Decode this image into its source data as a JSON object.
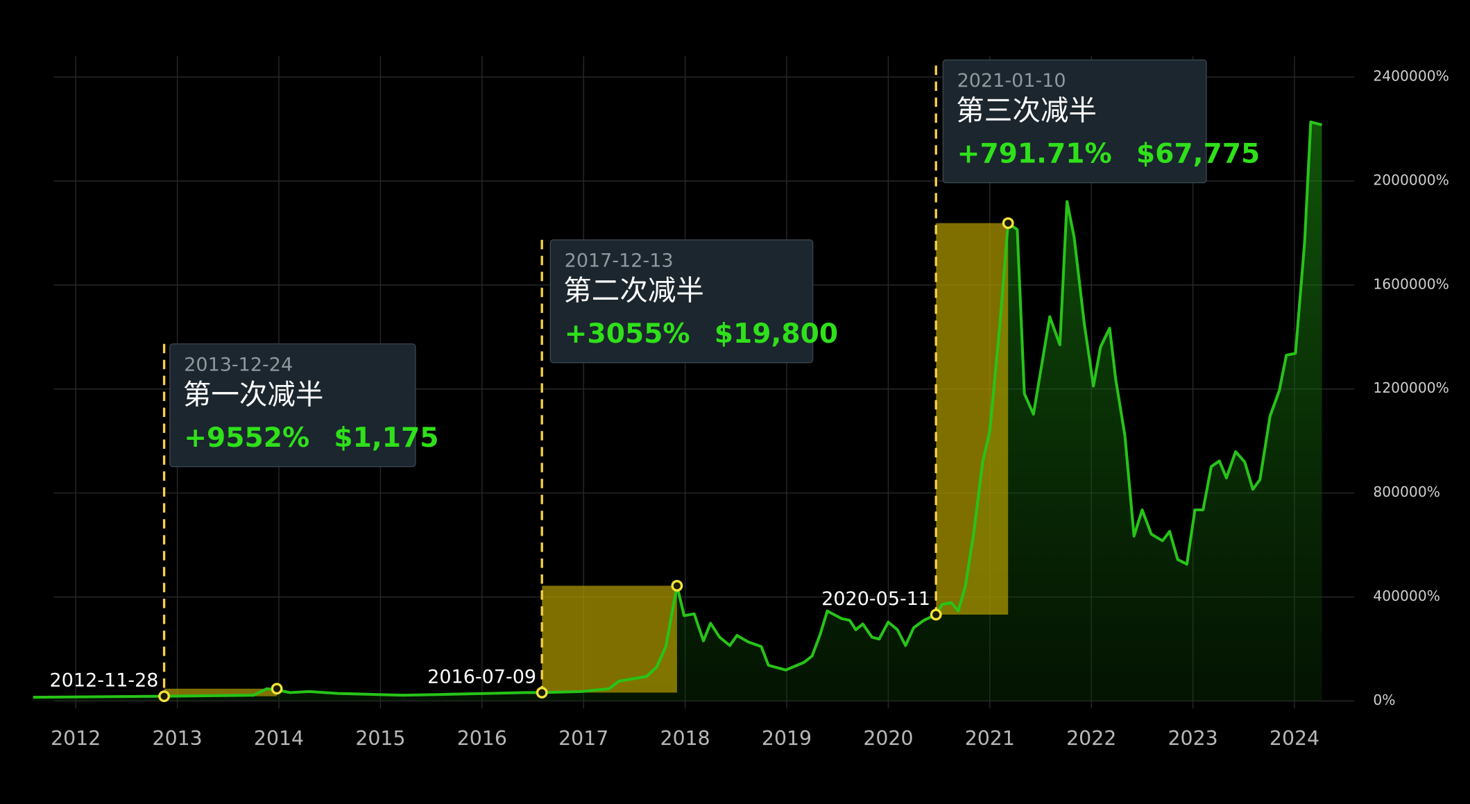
{
  "chart_data": {
    "type": "line",
    "color": "#27c418",
    "grid": true,
    "xlim": [
      2011.58,
      2024.59
    ],
    "xticks": [
      2012,
      2013,
      2014,
      2015,
      2016,
      2017,
      2018,
      2019,
      2020,
      2021,
      2022,
      2023,
      2024
    ],
    "ylim": [
      0,
      2480000
    ],
    "yticks": [
      {
        "value": 0,
        "label": "0%"
      },
      {
        "value": 400000,
        "label": "400000%"
      },
      {
        "value": 800000,
        "label": "800000%"
      },
      {
        "value": 1200000,
        "label": "1200000%"
      },
      {
        "value": 1600000,
        "label": "1600000%"
      },
      {
        "value": 2000000,
        "label": "2000000%"
      },
      {
        "value": 2400000,
        "label": "2400000%"
      }
    ],
    "x": [
      2011.58,
      2012.87,
      2013.75,
      2013.88,
      2013.97,
      2014.11,
      2014.3,
      2014.58,
      2014.95,
      2015.22,
      2015.59,
      2016.05,
      2016.42,
      2016.59,
      2016.98,
      2017.25,
      2017.35,
      2017.62,
      2017.72,
      2017.81,
      2017.92,
      2017.99,
      2018.09,
      2018.18,
      2018.25,
      2018.34,
      2018.44,
      2018.51,
      2018.62,
      2018.75,
      2018.82,
      2018.99,
      2019.17,
      2019.25,
      2019.33,
      2019.4,
      2019.54,
      2019.62,
      2019.68,
      2019.75,
      2019.84,
      2019.91,
      2020.0,
      2020.09,
      2020.17,
      2020.25,
      2020.35,
      2020.47,
      2020.53,
      2020.62,
      2020.69,
      2020.76,
      2020.84,
      2020.93,
      2021.0,
      2021.1,
      2021.18,
      2021.27,
      2021.34,
      2021.43,
      2021.59,
      2021.69,
      2021.76,
      2021.83,
      2021.93,
      2022.02,
      2022.09,
      2022.18,
      2022.24,
      2022.33,
      2022.42,
      2022.5,
      2022.59,
      2022.7,
      2022.77,
      2022.85,
      2022.94,
      2023.02,
      2023.1,
      2023.18,
      2023.26,
      2023.33,
      2023.42,
      2023.51,
      2023.59,
      2023.66,
      2023.76,
      2023.85,
      2023.92,
      2024.01,
      2024.1,
      2024.16,
      2024.27
    ],
    "values": [
      14000,
      18000,
      22000,
      47000,
      43000,
      32000,
      36000,
      29000,
      25000,
      22000,
      25000,
      29000,
      32000,
      32000,
      36000,
      47000,
      76000,
      94000,
      130000,
      209000,
      443000,
      328000,
      335000,
      231000,
      299000,
      245000,
      213000,
      252000,
      227000,
      209000,
      137000,
      119000,
      148000,
      173000,
      256000,
      346000,
      317000,
      310000,
      274000,
      296000,
      245000,
      238000,
      303000,
      274000,
      213000,
      281000,
      310000,
      332000,
      371000,
      378000,
      346000,
      443000,
      642000,
      919000,
      1038000,
      1452000,
      1838000,
      1813000,
      1182000,
      1103000,
      1478000,
      1370000,
      1921000,
      1784000,
      1452000,
      1211000,
      1362000,
      1434000,
      1236000,
      1020000,
      634000,
      735000,
      642000,
      616000,
      652000,
      544000,
      526000,
      735000,
      735000,
      901000,
      923000,
      858000,
      959000,
      919000,
      814000,
      851000,
      1096000,
      1193000,
      1330000,
      1337000,
      1766000,
      2227000,
      2216000
    ],
    "annotations": [
      {
        "halving_date": "2012-11-28",
        "halving_x": 2012.87,
        "halving_value": 18000,
        "peak_date": "2013-12-24",
        "peak_x": 2013.98,
        "peak_value": 47000,
        "title": "第一次减半",
        "change": "+9552%",
        "price": "$1,175"
      },
      {
        "halving_date": "2016-07-09",
        "halving_x": 2016.59,
        "halving_value": 32000,
        "peak_date": "2017-12-13",
        "peak_x": 2017.92,
        "peak_value": 443000,
        "title": "第二次减半",
        "change": "+3055%",
        "price": "$19,800"
      },
      {
        "halving_date": "2020-05-11",
        "halving_x": 2020.47,
        "halving_value": 332000,
        "peak_date": "2021-01-10",
        "peak_x": 2021.18,
        "peak_value": 1838000,
        "title": "第三次减半",
        "change": "+791.71%",
        "price": "$67,775"
      }
    ]
  }
}
